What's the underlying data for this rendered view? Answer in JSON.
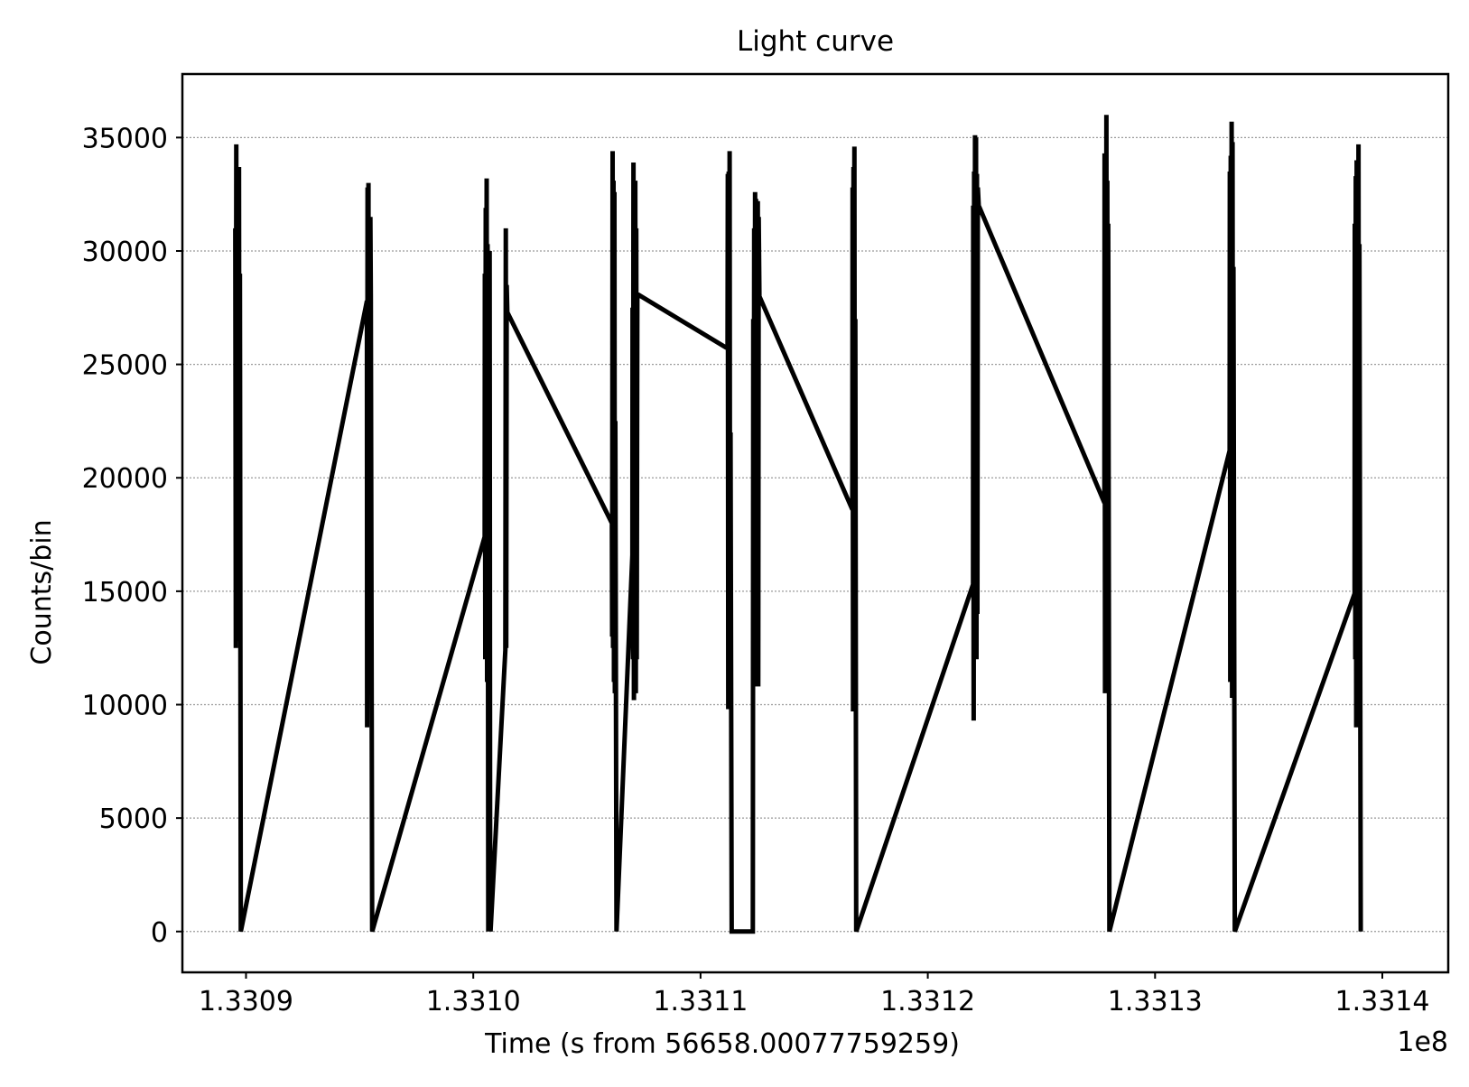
{
  "chart_data": {
    "type": "line",
    "title": "Light curve",
    "xlabel": "Time (s from 56658.00077759259)",
    "ylabel": "Counts/bin",
    "x_offset_label": "1e8",
    "xlim": [
      133087200,
      133142900
    ],
    "ylim": [
      -1800,
      37800
    ],
    "grid": "y-major-dotted",
    "x_ticks": [
      {
        "value": 133090000,
        "label": "1.3309"
      },
      {
        "value": 133100000,
        "label": "1.3310"
      },
      {
        "value": 133110000,
        "label": "1.3311"
      },
      {
        "value": 133120000,
        "label": "1.3312"
      },
      {
        "value": 133130000,
        "label": "1.3313"
      },
      {
        "value": 133140000,
        "label": "1.3314"
      }
    ],
    "y_ticks": [
      {
        "value": 0,
        "label": "0"
      },
      {
        "value": 5000,
        "label": "5000"
      },
      {
        "value": 10000,
        "label": "10000"
      },
      {
        "value": 15000,
        "label": "15000"
      },
      {
        "value": 20000,
        "label": "20000"
      },
      {
        "value": 25000,
        "label": "25000"
      },
      {
        "value": 30000,
        "label": "30000"
      },
      {
        "value": 35000,
        "label": "35000"
      }
    ],
    "series": [
      {
        "color": "#000000",
        "points": [
          [
            133089530,
            31000
          ],
          [
            133089550,
            12500
          ],
          [
            133089570,
            34700
          ],
          [
            133089590,
            13000
          ],
          [
            133089610,
            33500
          ],
          [
            133089630,
            12800
          ],
          [
            133089650,
            30000
          ],
          [
            133089670,
            13500
          ],
          [
            133089690,
            33700
          ],
          [
            133089710,
            14000
          ],
          [
            133089730,
            29000
          ],
          [
            133089770,
            0
          ],
          [
            133095320,
            27800
          ],
          [
            133095330,
            9000
          ],
          [
            133095350,
            32800
          ],
          [
            133095370,
            12000
          ],
          [
            133095390,
            33000
          ],
          [
            133095410,
            11500
          ],
          [
            133095430,
            29500
          ],
          [
            133095450,
            13000
          ],
          [
            133095470,
            31500
          ],
          [
            133095490,
            28000
          ],
          [
            133095550,
            0
          ],
          [
            133100500,
            17400
          ],
          [
            133100510,
            29000
          ],
          [
            133100530,
            12000
          ],
          [
            133100550,
            31900
          ],
          [
            133100570,
            13000
          ],
          [
            133100590,
            33200
          ],
          [
            133100610,
            11000
          ],
          [
            133100630,
            30300
          ],
          [
            133100650,
            12500
          ],
          [
            133100660,
            0
          ],
          [
            133100680,
            28000
          ],
          [
            133100700,
            0
          ],
          [
            133100720,
            30000
          ],
          [
            133100740,
            5000
          ],
          [
            133100760,
            0
          ],
          [
            133101410,
            12400
          ],
          [
            133101430,
            31000
          ],
          [
            133101450,
            12500
          ],
          [
            133101470,
            28500
          ],
          [
            133101500,
            27300
          ],
          [
            133106100,
            18000
          ],
          [
            133106110,
            13000
          ],
          [
            133106130,
            34400
          ],
          [
            133106150,
            12500
          ],
          [
            133106170,
            33100
          ],
          [
            133106190,
            11000
          ],
          [
            133106210,
            32600
          ],
          [
            133106230,
            10500
          ],
          [
            133106250,
            22500
          ],
          [
            133106300,
            0
          ],
          [
            133107000,
            16600
          ],
          [
            133107010,
            27500
          ],
          [
            133107030,
            12000
          ],
          [
            133107050,
            33900
          ],
          [
            133107070,
            10200
          ],
          [
            133107090,
            32500
          ],
          [
            133107110,
            11000
          ],
          [
            133107130,
            33100
          ],
          [
            133107150,
            10500
          ],
          [
            133107170,
            31000
          ],
          [
            133107190,
            12000
          ],
          [
            133107220,
            28100
          ],
          [
            133111190,
            25700
          ],
          [
            133111200,
            33400
          ],
          [
            133111220,
            9800
          ],
          [
            133111240,
            33500
          ],
          [
            133111260,
            10500
          ],
          [
            133111280,
            34400
          ],
          [
            133111300,
            11000
          ],
          [
            133111320,
            22000
          ],
          [
            133111370,
            0
          ],
          [
            133112300,
            0
          ],
          [
            133112320,
            27000
          ],
          [
            133112340,
            11500
          ],
          [
            133112360,
            31000
          ],
          [
            133112380,
            10800
          ],
          [
            133112400,
            32600
          ],
          [
            133112420,
            12000
          ],
          [
            133112440,
            32300
          ],
          [
            133112460,
            11500
          ],
          [
            133112480,
            31500
          ],
          [
            133112500,
            12000
          ],
          [
            133112520,
            32200
          ],
          [
            133112540,
            10800
          ],
          [
            133112560,
            31500
          ],
          [
            133112590,
            28000
          ],
          [
            133116680,
            18600
          ],
          [
            133116690,
            32800
          ],
          [
            133116710,
            9700
          ],
          [
            133116730,
            33700
          ],
          [
            133116750,
            10500
          ],
          [
            133116770,
            34600
          ],
          [
            133116790,
            12000
          ],
          [
            133116810,
            27000
          ],
          [
            133116850,
            0
          ],
          [
            133121990,
            15300
          ],
          [
            133122000,
            32000
          ],
          [
            133122020,
            9300
          ],
          [
            133122040,
            33500
          ],
          [
            133122060,
            12000
          ],
          [
            133122080,
            35100
          ],
          [
            133122100,
            13000
          ],
          [
            133122120,
            35000
          ],
          [
            133122140,
            12000
          ],
          [
            133122160,
            33400
          ],
          [
            133122180,
            14000
          ],
          [
            133122200,
            32800
          ],
          [
            133122240,
            32000
          ],
          [
            133127770,
            18900
          ],
          [
            133127780,
            34300
          ],
          [
            133127800,
            10500
          ],
          [
            133127820,
            33400
          ],
          [
            133127840,
            11500
          ],
          [
            133127860,
            36000
          ],
          [
            133127880,
            11000
          ],
          [
            133127900,
            33100
          ],
          [
            133127920,
            12000
          ],
          [
            133127940,
            31200
          ],
          [
            133127990,
            0
          ],
          [
            133133280,
            21200
          ],
          [
            133133290,
            33500
          ],
          [
            133133310,
            11000
          ],
          [
            133133330,
            34200
          ],
          [
            133133350,
            13000
          ],
          [
            133133370,
            35700
          ],
          [
            133133390,
            10300
          ],
          [
            133133410,
            34800
          ],
          [
            133133430,
            11500
          ],
          [
            133133450,
            29300
          ],
          [
            133133510,
            0
          ],
          [
            133138780,
            14900
          ],
          [
            133138790,
            31200
          ],
          [
            133138810,
            12000
          ],
          [
            133138830,
            33300
          ],
          [
            133138850,
            9000
          ],
          [
            133138870,
            34000
          ],
          [
            133138890,
            11000
          ],
          [
            133138910,
            33500
          ],
          [
            133138930,
            12500
          ],
          [
            133138950,
            34700
          ],
          [
            133138970,
            13500
          ],
          [
            133138990,
            30300
          ],
          [
            133139050,
            0
          ]
        ]
      }
    ]
  }
}
